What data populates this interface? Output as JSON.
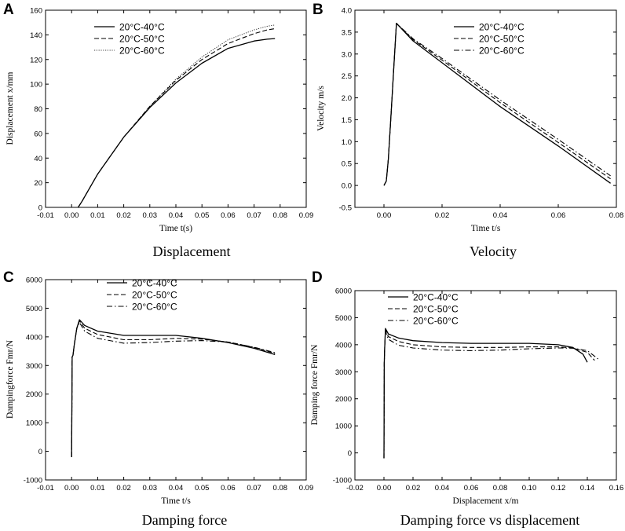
{
  "chart_data": [
    {
      "panel": "A",
      "type": "line",
      "caption": "Displacement",
      "xlabel": "Time t(s)",
      "ylabel": "Displacement x/mm",
      "xlim": [
        -0.01,
        0.09
      ],
      "ylim": [
        0,
        160
      ],
      "xticks": [
        -0.01,
        0,
        0.01,
        0.02,
        0.03,
        0.04,
        0.05,
        0.06,
        0.07,
        0.08,
        0.09
      ],
      "xtick_labels": [
        "-0.01",
        "0.00",
        "0.01",
        "0.02",
        "0.03",
        "0.04",
        "0.05",
        "0.06",
        "0.07",
        "0.08",
        "0.09"
      ],
      "yticks": [
        0,
        20,
        40,
        60,
        80,
        100,
        120,
        140,
        160
      ],
      "ytick_labels": [
        "0",
        "20",
        "40",
        "60",
        "80",
        "100",
        "120",
        "140",
        "160"
      ],
      "legend_position": "top-left",
      "series": [
        {
          "name": "20°C-40°C",
          "style": "solid",
          "x": [
            0.0025,
            0.004,
            0.01,
            0.02,
            0.03,
            0.04,
            0.05,
            0.06,
            0.07,
            0.075,
            0.078
          ],
          "y": [
            0,
            5,
            27,
            57,
            81,
            101,
            117,
            129,
            135,
            136.5,
            137
          ]
        },
        {
          "name": "20°C-50°C",
          "style": "dashed",
          "x": [
            0.0025,
            0.004,
            0.01,
            0.02,
            0.03,
            0.04,
            0.05,
            0.06,
            0.07,
            0.075,
            0.078
          ],
          "y": [
            0,
            5,
            27,
            57,
            82,
            103,
            120,
            133,
            141,
            144,
            145
          ]
        },
        {
          "name": "20°C-60°C",
          "style": "dotted",
          "x": [
            0.0025,
            0.004,
            0.01,
            0.02,
            0.03,
            0.04,
            0.05,
            0.06,
            0.07,
            0.075,
            0.078
          ],
          "y": [
            0,
            5,
            27,
            57,
            82,
            104,
            122,
            136,
            144,
            147,
            148
          ]
        }
      ]
    },
    {
      "panel": "B",
      "type": "line",
      "caption": "Velocity",
      "xlabel": "Time t/s",
      "ylabel": "Velocity m/s",
      "xlim": [
        -0.01,
        0.08
      ],
      "ylim": [
        -0.5,
        4.0
      ],
      "xticks": [
        0,
        0.02,
        0.04,
        0.06,
        0.08
      ],
      "xtick_labels": [
        "0.00",
        "0.02",
        "0.04",
        "0.06",
        "0.08"
      ],
      "yticks": [
        -0.5,
        0.0,
        0.5,
        1.0,
        1.5,
        2.0,
        2.5,
        3.0,
        3.5,
        4.0
      ],
      "ytick_labels": [
        "-0.5",
        "0.0",
        "0.5",
        "1.0",
        "1.5",
        "2.0",
        "2.5",
        "3.0",
        "3.5",
        "4.0"
      ],
      "legend_position": "top-right",
      "series": [
        {
          "name": "20°C-40°C",
          "style": "solid",
          "x": [
            0.0,
            0.0008,
            0.0015,
            0.0025,
            0.0035,
            0.0043,
            0.01,
            0.02,
            0.04,
            0.06,
            0.078
          ],
          "y": [
            0.0,
            0.1,
            0.6,
            1.7,
            2.8,
            3.7,
            3.3,
            2.8,
            1.8,
            0.9,
            0.05
          ]
        },
        {
          "name": "20°C-50°C",
          "style": "dashed",
          "x": [
            0.0,
            0.0008,
            0.0015,
            0.0025,
            0.0035,
            0.0043,
            0.01,
            0.02,
            0.04,
            0.06,
            0.078
          ],
          "y": [
            0.0,
            0.1,
            0.6,
            1.7,
            2.8,
            3.7,
            3.33,
            2.86,
            1.89,
            0.98,
            0.15
          ]
        },
        {
          "name": "20°C-60°C",
          "style": "dashdot",
          "x": [
            0.0,
            0.0008,
            0.0015,
            0.0025,
            0.0035,
            0.0043,
            0.01,
            0.02,
            0.04,
            0.06,
            0.078
          ],
          "y": [
            0.0,
            0.1,
            0.6,
            1.7,
            2.8,
            3.7,
            3.35,
            2.9,
            1.95,
            1.05,
            0.22
          ]
        }
      ]
    },
    {
      "panel": "C",
      "type": "line",
      "caption": "Damping force",
      "xlabel": "Time t/s",
      "ylabel": "Dampingforce Fmr/N",
      "xlim": [
        -0.01,
        0.09
      ],
      "ylim": [
        -1000,
        6000
      ],
      "xticks": [
        -0.01,
        0,
        0.01,
        0.02,
        0.03,
        0.04,
        0.05,
        0.06,
        0.07,
        0.08,
        0.09
      ],
      "xtick_labels": [
        "-0.01",
        "0.00",
        "0.01",
        "0.02",
        "0.03",
        "0.04",
        "0.05",
        "0.06",
        "0.07",
        "0.08",
        "0.09"
      ],
      "yticks": [
        -1000,
        0,
        1000,
        2000,
        3000,
        4000,
        5000,
        6000
      ],
      "ytick_labels": [
        "-1000",
        "0",
        "1000",
        "2000",
        "3000",
        "4000",
        "5000",
        "6000"
      ],
      "legend_position": "top-left",
      "series": [
        {
          "name": "20°C-40°C",
          "style": "solid",
          "x": [
            0.0,
            0.0002,
            0.0005,
            0.001,
            0.002,
            0.003,
            0.005,
            0.01,
            0.02,
            0.03,
            0.04,
            0.05,
            0.06,
            0.07,
            0.078
          ],
          "y": [
            -200,
            3300,
            3350,
            3700,
            4300,
            4600,
            4400,
            4200,
            4050,
            4050,
            4050,
            3950,
            3800,
            3600,
            3380
          ]
        },
        {
          "name": "20°C-50°C",
          "style": "dashed",
          "x": [
            0.0,
            0.0002,
            0.0005,
            0.001,
            0.002,
            0.003,
            0.005,
            0.01,
            0.02,
            0.03,
            0.04,
            0.05,
            0.06,
            0.07,
            0.078
          ],
          "y": [
            -200,
            3300,
            3350,
            3700,
            4300,
            4560,
            4300,
            4080,
            3900,
            3900,
            3950,
            3920,
            3820,
            3630,
            3420
          ]
        },
        {
          "name": "20°C-60°C",
          "style": "dashdot",
          "x": [
            0.0,
            0.0002,
            0.0005,
            0.001,
            0.002,
            0.003,
            0.005,
            0.01,
            0.02,
            0.03,
            0.04,
            0.05,
            0.06,
            0.07,
            0.078
          ],
          "y": [
            -200,
            3300,
            3350,
            3700,
            4300,
            4500,
            4200,
            3950,
            3780,
            3800,
            3850,
            3870,
            3820,
            3640,
            3450
          ]
        }
      ]
    },
    {
      "panel": "D",
      "type": "line",
      "caption": "Damping force vs displacement",
      "xlabel": "Displacement x/m",
      "ylabel": "Damping force Fmr/N",
      "xlim": [
        -0.02,
        0.16
      ],
      "ylim": [
        -1000,
        6000
      ],
      "xticks": [
        -0.02,
        0,
        0.02,
        0.04,
        0.06,
        0.08,
        0.1,
        0.12,
        0.14,
        0.16
      ],
      "xtick_labels": [
        "-0.02",
        "0.00",
        "0.02",
        "0.04",
        "0.06",
        "0.08",
        "0.10",
        "0.12",
        "0.14",
        "0.16"
      ],
      "yticks": [
        -1000,
        0,
        1000,
        2000,
        3000,
        4000,
        5000,
        6000
      ],
      "ytick_labels": [
        "-1000",
        "0",
        "1000",
        "2000",
        "3000",
        "4000",
        "5000",
        "6000"
      ],
      "legend_position": "top-left",
      "series": [
        {
          "name": "20°C-40°C",
          "style": "solid",
          "x": [
            0.0,
            0.0002,
            0.0004,
            0.0008,
            0.001,
            0.003,
            0.01,
            0.02,
            0.04,
            0.06,
            0.08,
            0.1,
            0.12,
            0.13,
            0.137,
            0.14
          ],
          "y": [
            -200,
            3300,
            3700,
            4300,
            4600,
            4400,
            4250,
            4150,
            4080,
            4050,
            4050,
            4050,
            4000,
            3900,
            3650,
            3350
          ]
        },
        {
          "name": "20°C-50°C",
          "style": "dashed",
          "x": [
            0.0,
            0.0002,
            0.0004,
            0.0008,
            0.001,
            0.003,
            0.01,
            0.02,
            0.04,
            0.06,
            0.08,
            0.1,
            0.12,
            0.13,
            0.14,
            0.145
          ],
          "y": [
            -200,
            3300,
            3700,
            4300,
            4560,
            4300,
            4120,
            4000,
            3920,
            3900,
            3900,
            3920,
            3920,
            3880,
            3720,
            3420
          ]
        },
        {
          "name": "20°C-60°C",
          "style": "dashdot",
          "x": [
            0.0,
            0.0002,
            0.0004,
            0.0008,
            0.001,
            0.003,
            0.01,
            0.02,
            0.04,
            0.06,
            0.08,
            0.1,
            0.12,
            0.13,
            0.14,
            0.148
          ],
          "y": [
            -200,
            3300,
            3700,
            4300,
            4500,
            4200,
            3980,
            3880,
            3800,
            3780,
            3800,
            3850,
            3880,
            3870,
            3780,
            3450
          ]
        }
      ]
    }
  ]
}
